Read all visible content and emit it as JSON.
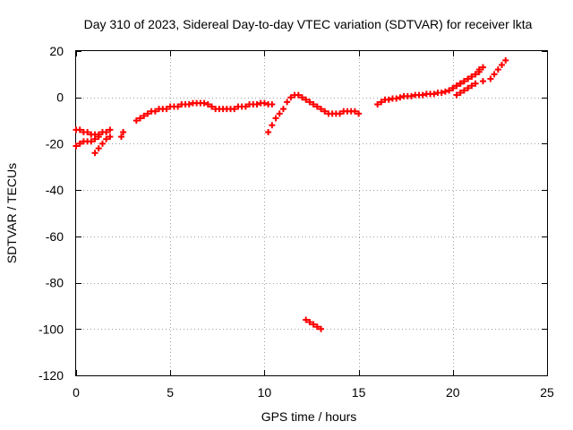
{
  "chart_data": {
    "type": "scatter",
    "title": "Day 310 of 2023, Sidereal Day-to-day VTEC variation (SDTVAR) for receiver lkta",
    "xlabel": "GPS time / hours",
    "ylabel": "SDTVAR / TECUs",
    "xlim": [
      0,
      25
    ],
    "ylim": [
      -120,
      20
    ],
    "xticks": [
      0,
      5,
      10,
      15,
      20,
      25
    ],
    "yticks": [
      20,
      0,
      -20,
      -40,
      -60,
      -80,
      -100,
      -120
    ],
    "xtick_labels": [
      "0",
      "5",
      "10",
      "15",
      "20",
      "25"
    ],
    "ytick_labels": [
      "20",
      "0",
      "-20",
      "-40",
      "-60",
      "-80",
      "-100",
      "-120"
    ],
    "grid": true,
    "marker": "+",
    "marker_color": "#ff0000",
    "series": [
      {
        "name": "SDTVAR",
        "x": [
          0.0,
          0.2,
          0.4,
          0.6,
          0.8,
          1.0,
          1.2,
          1.4,
          1.6,
          1.8,
          0.0,
          0.2,
          0.4,
          0.6,
          0.8,
          1.0,
          1.2,
          1.0,
          1.2,
          1.4,
          1.6,
          1.8,
          2.4,
          2.5,
          3.2,
          3.4,
          3.6,
          3.8,
          4.0,
          4.2,
          4.4,
          4.6,
          4.8,
          5.0,
          5.2,
          5.4,
          5.6,
          5.8,
          6.0,
          6.2,
          6.4,
          6.6,
          6.8,
          7.0,
          7.2,
          7.4,
          7.6,
          7.8,
          8.0,
          8.2,
          8.4,
          8.6,
          8.8,
          9.0,
          9.2,
          9.4,
          9.6,
          9.8,
          10.0,
          10.2,
          10.4,
          10.2,
          10.4,
          10.6,
          10.8,
          11.0,
          11.2,
          11.4,
          11.6,
          11.8,
          12.0,
          12.2,
          12.4,
          12.6,
          12.8,
          13.0,
          13.2,
          13.4,
          13.6,
          13.8,
          14.0,
          14.2,
          14.4,
          14.6,
          14.8,
          15.0,
          16.0,
          16.2,
          16.4,
          16.6,
          16.8,
          17.0,
          17.2,
          17.4,
          17.6,
          17.8,
          18.0,
          18.2,
          18.4,
          18.6,
          18.8,
          19.0,
          19.2,
          19.4,
          19.6,
          19.8,
          20.0,
          20.2,
          20.4,
          20.6,
          20.8,
          21.0,
          21.2,
          21.4,
          19.8,
          20.0,
          20.2,
          20.4,
          20.6,
          20.8,
          21.0,
          21.2,
          21.4,
          21.6,
          20.2,
          20.4,
          20.6,
          20.8,
          21.0,
          21.2,
          21.6,
          22.0,
          22.2,
          22.4,
          22.6,
          22.8,
          12.2,
          12.4,
          12.6,
          12.8,
          13.0
        ],
        "y": [
          -14,
          -14,
          -15,
          -15,
          -16,
          -16,
          -16,
          -15,
          -15,
          -14,
          -21,
          -20,
          -19,
          -19,
          -19,
          -18,
          -17,
          -24,
          -22,
          -20,
          -18,
          -17,
          -17,
          -15,
          -10,
          -9,
          -8,
          -7,
          -6,
          -6,
          -5,
          -5,
          -5,
          -4,
          -4,
          -4,
          -3,
          -3,
          -3,
          -2.5,
          -2.5,
          -2.5,
          -2.5,
          -3,
          -4,
          -5,
          -5,
          -5,
          -5,
          -5,
          -5,
          -4,
          -4,
          -4,
          -3,
          -3,
          -3,
          -2.5,
          -2.5,
          -3,
          -3,
          -15,
          -12,
          -9,
          -7,
          -5,
          -2,
          0,
          1,
          1,
          0,
          -1,
          -2,
          -3,
          -4,
          -5,
          -6,
          -7,
          -7,
          -7,
          -7,
          -6,
          -6,
          -6,
          -6,
          -7,
          -3,
          -2,
          -1,
          -1,
          -0.5,
          -0.5,
          0,
          0.5,
          0.5,
          0.5,
          1,
          1,
          1,
          1.5,
          1.5,
          1.5,
          2,
          2,
          2.5,
          3,
          4,
          5,
          6,
          7,
          8,
          9,
          10,
          11,
          3,
          4,
          5,
          6,
          7,
          8,
          9,
          10,
          12,
          13,
          1,
          2,
          3,
          4,
          5,
          6,
          7,
          8,
          10,
          12,
          14,
          16,
          -96,
          -97,
          -98,
          -99,
          -100
        ]
      }
    ]
  }
}
